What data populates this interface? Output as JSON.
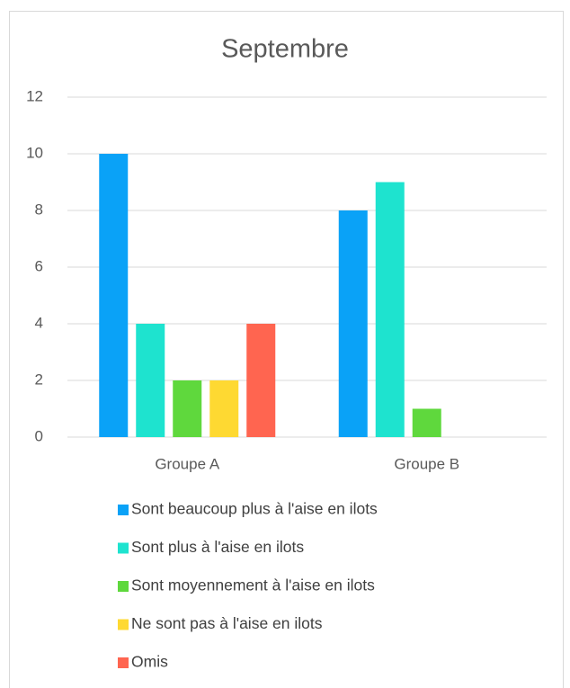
{
  "chart_data": {
    "type": "bar",
    "title": "Septembre",
    "categories": [
      "Groupe A",
      "Groupe B"
    ],
    "series": [
      {
        "name": "Sont beaucoup plus à l'aise en ilots",
        "color": "#0aa2f7",
        "values": [
          10,
          8
        ]
      },
      {
        "name": "Sont plus à l'aise en ilots",
        "color": "#1ee3cf",
        "values": [
          4,
          9
        ]
      },
      {
        "name": "Sont moyennement à l'aise en ilots",
        "color": "#5fd83d",
        "values": [
          2,
          1
        ]
      },
      {
        "name": "Ne sont pas à l'aise en ilots",
        "color": "#fed932",
        "values": [
          2,
          0
        ]
      },
      {
        "name": "Omis",
        "color": "#ff6550",
        "values": [
          4,
          0
        ]
      }
    ],
    "ylim": [
      0,
      12
    ],
    "yticks": [
      0,
      2,
      4,
      6,
      8,
      10,
      12
    ],
    "grid": true,
    "legend": "bottom"
  }
}
